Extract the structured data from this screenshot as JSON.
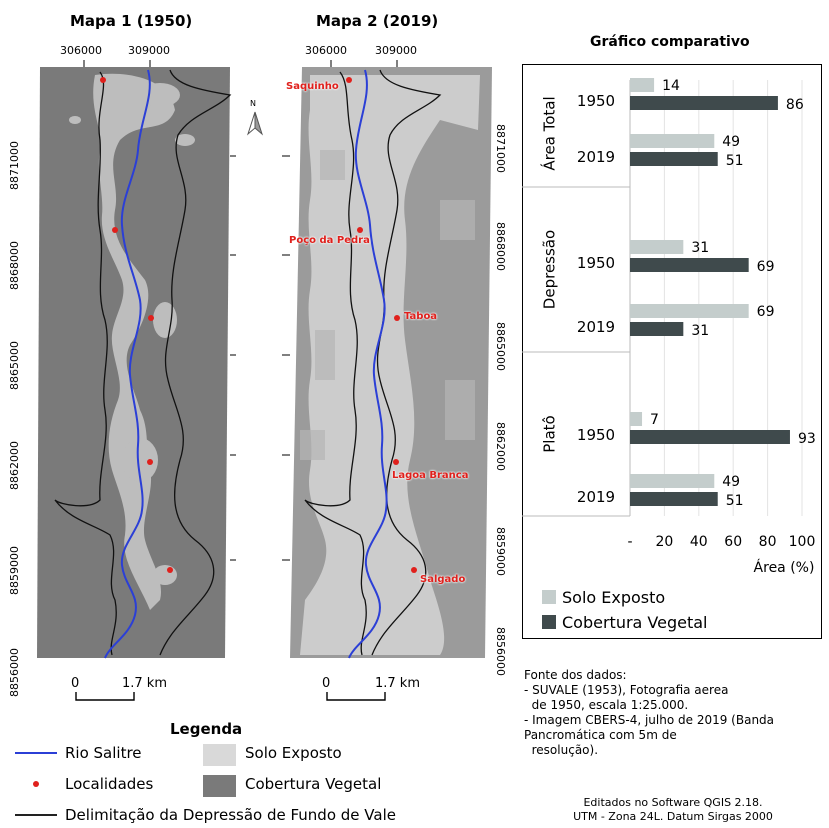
{
  "map1": {
    "title": "Mapa 1  (1950)",
    "x_ticks": [
      "306000",
      "309000"
    ],
    "y_ticks": [
      "8871000",
      "8868000",
      "8865000",
      "8862000",
      "8859000",
      "8856000"
    ],
    "scale_start": "0",
    "scale_end": "1.7 km"
  },
  "map2": {
    "title": "Mapa 2  (2019)",
    "x_ticks": [
      "306000",
      "309000"
    ],
    "y_ticks": [
      "8871000",
      "8868000",
      "8865000",
      "8862000",
      "8859000",
      "8856000"
    ],
    "scale_start": "0",
    "scale_end": "1.7 km",
    "localities": [
      "Saquinho",
      "Poço da Pedra",
      "Taboa",
      "Lagoa Branca",
      "Salgado"
    ]
  },
  "north_arrow": "N",
  "legend": {
    "title": "Legenda",
    "items": [
      {
        "label": "Rio Salitre",
        "icon": "blue-line-icon"
      },
      {
        "label": "Solo Exposto",
        "icon": "light-gray-swatch-icon"
      },
      {
        "label": "Localidades",
        "icon": "red-dot-icon"
      },
      {
        "label": "Cobertura Vegetal",
        "icon": "dark-gray-swatch-icon"
      },
      {
        "label": "Delimitação da Depressão de Fundo de Vale",
        "icon": "black-line-icon"
      }
    ]
  },
  "chart_data": {
    "type": "bar",
    "orientation": "horizontal",
    "title": "Gráfico comparativo",
    "xlabel": "Área (%)",
    "xlim": [
      0,
      100
    ],
    "x_ticks": [
      "-",
      "20",
      "40",
      "60",
      "80",
      "100"
    ],
    "groups": [
      {
        "name": "Área Total",
        "years": [
          {
            "year": "1950",
            "solo": 14,
            "cobertura": 86
          },
          {
            "year": "2019",
            "solo": 49,
            "cobertura": 51
          }
        ]
      },
      {
        "name": "Depressão",
        "years": [
          {
            "year": "1950",
            "solo": 31,
            "cobertura": 69
          },
          {
            "year": "2019",
            "solo": 69,
            "cobertura": 31
          }
        ]
      },
      {
        "name": "Platô",
        "years": [
          {
            "year": "1950",
            "solo": 7,
            "cobertura": 93
          },
          {
            "year": "2019",
            "solo": 49,
            "cobertura": 51
          }
        ]
      }
    ],
    "series": [
      {
        "name": "Solo Exposto",
        "color": "#c4cdcc"
      },
      {
        "name": "Cobertura Vegetal",
        "color": "#3f4a4c"
      }
    ]
  },
  "sources": {
    "heading": "Fonte dos dados:",
    "lines": [
      "- SUVALE (1953), Fotografia aerea",
      "  de 1950, escala 1:25.000.",
      "- Imagem CBERS-4, julho de 2019 (Banda",
      "Pancromática com 5m de",
      "  resolução)."
    ]
  },
  "credits": {
    "line1": "Editados no Software QGIS 2.18.",
    "line2": "UTM - Zona 24L. Datum Sirgas 2000"
  },
  "colors": {
    "river": "#2b3fd6",
    "locality": "#e0201c",
    "map1_background": "#7a7a7a",
    "map2_background": "#9b9b9b",
    "solo_exposto": "#c4cdcc",
    "cobertura_vegetal": "#3f4a4c"
  }
}
